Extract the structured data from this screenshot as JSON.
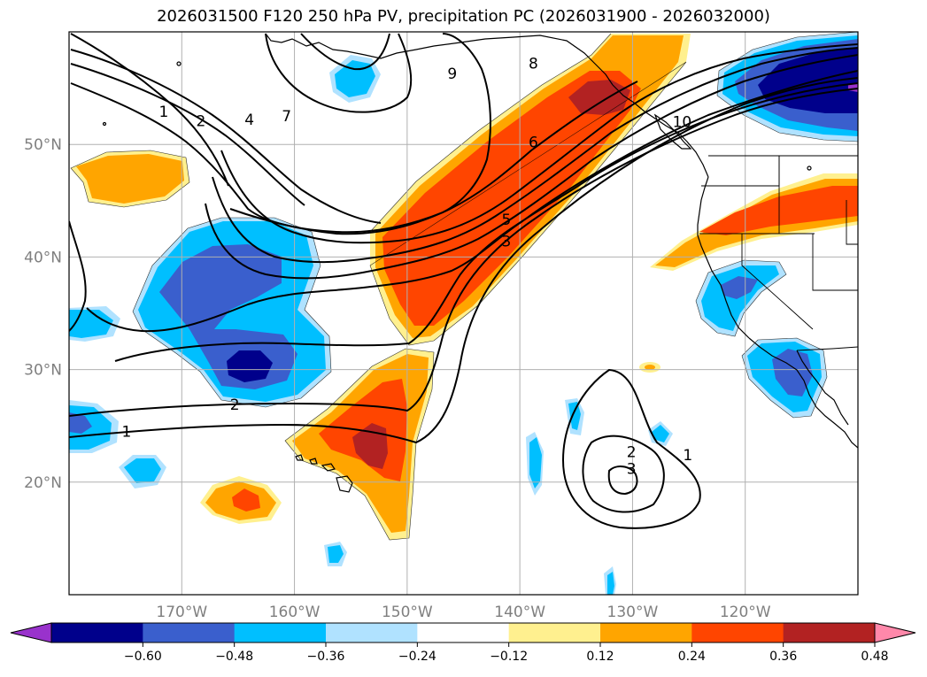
{
  "title": "2026031500 F120 250 hPa PV, precipitation PC (2026031900 - 2026032000)",
  "map": {
    "projection": "lat-lon",
    "lon_range": [
      -180,
      -110
    ],
    "lat_range": [
      10,
      60
    ],
    "lat_ticks": [
      {
        "lat": 20,
        "label": "20°N"
      },
      {
        "lat": 30,
        "label": "30°N"
      },
      {
        "lat": 40,
        "label": "40°N"
      },
      {
        "lat": 50,
        "label": "50°N"
      }
    ],
    "lon_ticks": [
      {
        "lon": -170,
        "label": "170°W"
      },
      {
        "lon": -160,
        "label": "160°W"
      },
      {
        "lon": -150,
        "label": "150°W"
      },
      {
        "lon": -140,
        "label": "140°W"
      },
      {
        "lon": -130,
        "label": "130°W"
      },
      {
        "lon": -120,
        "label": "120°W"
      }
    ],
    "pv_contour_labels": [
      {
        "text": "1",
        "lon": -174.9,
        "lat": 24.2
      },
      {
        "text": "2",
        "lon": -165.3,
        "lat": 26.6
      },
      {
        "text": "1",
        "lon": -171.6,
        "lat": 52.6
      },
      {
        "text": "2",
        "lon": -168.3,
        "lat": 51.8
      },
      {
        "text": "4",
        "lon": -164.0,
        "lat": 51.9
      },
      {
        "text": "7",
        "lon": -160.7,
        "lat": 52.2
      },
      {
        "text": "8",
        "lon": -138.8,
        "lat": 56.9
      },
      {
        "text": "9",
        "lon": -146.0,
        "lat": 56.0
      },
      {
        "text": "6",
        "lon": -138.8,
        "lat": 49.9
      },
      {
        "text": "5",
        "lon": -141.2,
        "lat": 43.0
      },
      {
        "text": "3",
        "lon": -141.2,
        "lat": 41.1
      },
      {
        "text": "1",
        "lon": -125.1,
        "lat": 22.1
      },
      {
        "text": "2",
        "lon": -130.1,
        "lat": 22.4
      },
      {
        "text": "3",
        "lon": -130.1,
        "lat": 20.9
      },
      {
        "text": "10",
        "lon": -125.6,
        "lat": 51.7
      }
    ]
  },
  "colorbar": {
    "label": "precipitation PC",
    "levels": [
      -0.6,
      -0.48,
      -0.36,
      -0.24,
      -0.12,
      0.12,
      0.24,
      0.36,
      0.48,
      0.6
    ],
    "tick_labels": [
      "−0.60",
      "−0.48",
      "−0.36",
      "−0.24",
      "−0.12",
      "0.12",
      "0.24",
      "0.36",
      "0.48",
      "0.60"
    ],
    "colors": [
      "#9932cc",
      "#00008b",
      "#3a5fcd",
      "#00bfff",
      "#b0e2ff",
      "#ffffff",
      "#fff08f",
      "#ffa500",
      "#ff4500",
      "#b22222",
      "#ff88aa"
    ]
  },
  "precip_colors": {
    "neg_light": "#b0e2ff",
    "neg_mid": "#00bfff",
    "neg_strong": "#3a5fcd",
    "neg_max": "#00008b",
    "neg_extreme": "#9932cc",
    "pos_light": "#fff08f",
    "pos_mid": "#ffa500",
    "pos_strong": "#ff4500",
    "pos_max": "#b22222"
  }
}
